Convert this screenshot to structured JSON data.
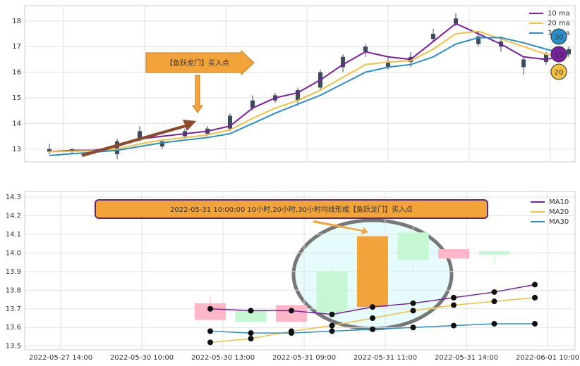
{
  "chart_data": [
    {
      "type": "candlestick",
      "annotation": "【鱼跃龙门】买入点",
      "ylim": [
        12.5,
        18.6
      ],
      "yticks": [
        13,
        14,
        15,
        16,
        17,
        18
      ],
      "grid": true,
      "candle_color": "#3b4a5c",
      "candles": [
        {
          "open": 12.9,
          "close": 13.0,
          "high": 13.2,
          "low": 12.8
        },
        {
          "open": 13.0,
          "close": 12.9,
          "high": 13.0,
          "low": 12.8
        },
        {
          "open": 12.9,
          "close": 12.95,
          "high": 13.0,
          "low": 12.8
        },
        {
          "open": 12.8,
          "close": 13.3,
          "high": 13.4,
          "low": 12.6
        },
        {
          "open": 13.4,
          "close": 13.7,
          "high": 13.9,
          "low": 13.3
        },
        {
          "open": 13.3,
          "close": 13.1,
          "high": 13.4,
          "low": 13.0
        },
        {
          "open": 13.5,
          "close": 13.7,
          "high": 13.8,
          "low": 13.4
        },
        {
          "open": 13.6,
          "close": 13.8,
          "high": 13.9,
          "low": 13.5
        },
        {
          "open": 13.8,
          "close": 14.3,
          "high": 14.4,
          "low": 13.7
        },
        {
          "open": 14.6,
          "close": 14.9,
          "high": 15.1,
          "low": 14.5
        },
        {
          "open": 14.9,
          "close": 15.1,
          "high": 15.2,
          "low": 14.8
        },
        {
          "open": 14.9,
          "close": 15.3,
          "high": 15.4,
          "low": 14.7
        },
        {
          "open": 15.4,
          "close": 16.0,
          "high": 16.1,
          "low": 15.3
        },
        {
          "open": 16.2,
          "close": 16.6,
          "high": 16.7,
          "low": 16.0
        },
        {
          "open": 16.8,
          "close": 17.0,
          "high": 17.1,
          "low": 16.6
        },
        {
          "open": 16.4,
          "close": 16.2,
          "high": 16.6,
          "low": 16.1
        },
        {
          "open": 16.4,
          "close": 16.6,
          "high": 16.8,
          "low": 16.2
        },
        {
          "open": 17.5,
          "close": 17.3,
          "high": 17.7,
          "low": 17.2
        },
        {
          "open": 17.9,
          "close": 18.1,
          "high": 18.3,
          "low": 17.8
        },
        {
          "open": 17.4,
          "close": 17.1,
          "high": 17.6,
          "low": 17.0
        },
        {
          "open": 17.0,
          "close": 17.2,
          "high": 17.4,
          "low": 16.8
        },
        {
          "open": 16.5,
          "close": 16.2,
          "high": 16.6,
          "low": 15.9
        },
        {
          "open": 16.4,
          "close": 16.7,
          "high": 16.8,
          "low": 16.3
        },
        {
          "open": 16.7,
          "close": 16.9,
          "high": 17.0,
          "low": 16.6
        }
      ],
      "series": [
        {
          "name": "10 ma",
          "color": "#7b1fa2",
          "values": [
            12.9,
            12.95,
            12.95,
            13.1,
            13.4,
            13.5,
            13.6,
            13.7,
            13.9,
            14.6,
            15.0,
            15.2,
            15.7,
            16.3,
            16.8,
            16.6,
            16.5,
            17.2,
            17.9,
            17.5,
            17.1,
            16.6,
            16.5,
            16.7
          ]
        },
        {
          "name": "20 ma",
          "color": "#f0c040",
          "values": [
            12.9,
            12.92,
            12.93,
            13.0,
            13.2,
            13.35,
            13.45,
            13.55,
            13.75,
            14.2,
            14.6,
            14.9,
            15.3,
            15.8,
            16.3,
            16.4,
            16.45,
            16.9,
            17.5,
            17.6,
            17.3,
            17.0,
            16.7,
            16.6
          ]
        },
        {
          "name": "30 ma",
          "color": "#2a8fc8",
          "values": [
            12.75,
            12.82,
            12.88,
            12.95,
            13.1,
            13.25,
            13.35,
            13.45,
            13.6,
            14.0,
            14.4,
            14.75,
            15.1,
            15.55,
            16.0,
            16.2,
            16.3,
            16.6,
            17.1,
            17.35,
            17.35,
            17.15,
            16.9,
            16.7
          ]
        }
      ],
      "badges": [
        {
          "label": "30",
          "color": "#2a8fc8"
        },
        {
          "label": "10",
          "color": "#7b1fa2"
        },
        {
          "label": "20",
          "color": "#f0c040"
        }
      ]
    },
    {
      "type": "candlestick",
      "annotation": "2022-05-31 10:00:00 10小时,20小时,30小时均线形成【鱼跃龙门】买入点",
      "ylim": [
        13.48,
        14.33
      ],
      "yticks": [
        13.5,
        13.6,
        13.7,
        13.8,
        13.9,
        {
          "value": 14.0,
          "label": "14.0"
        },
        14.1,
        14.2,
        14.3
      ],
      "grid": true,
      "xticks": [
        "2022-05-27 14:00",
        "2022-05-30 10:00",
        "2022-05-30 13:00",
        "2022-05-31 09:00",
        "2022-05-31 11:00",
        "2022-05-31 14:00",
        "2022-06-01 10:00"
      ],
      "candles": [
        {
          "open": 13.64,
          "close": 13.73,
          "high": 13.77,
          "low": 13.64,
          "color": "#ffb6c8"
        },
        {
          "open": 13.63,
          "close": 13.69,
          "high": 13.69,
          "low": 13.63,
          "color": "#c4f7d2"
        },
        {
          "open": 13.63,
          "close": 13.72,
          "high": 13.72,
          "low": 13.63,
          "color": "#ffb6c8"
        },
        {
          "open": 13.68,
          "close": 13.9,
          "high": 13.93,
          "low": 13.68,
          "color": "#c4f7d2"
        },
        {
          "open": 13.71,
          "close": 14.09,
          "high": 14.09,
          "low": 13.71,
          "color": "#f2a43a"
        },
        {
          "open": 13.96,
          "close": 14.11,
          "high": 14.14,
          "low": 13.89,
          "color": "#c4f7d2"
        },
        {
          "open": 13.97,
          "close": 14.02,
          "high": 14.02,
          "low": 13.97,
          "color": "#ffb6c8"
        },
        {
          "open": 13.99,
          "close": 14.01,
          "high": 14.01,
          "low": 13.94,
          "color": "#c4f7d2"
        }
      ],
      "series": [
        {
          "name": "MA10",
          "color": "#7b1fa2",
          "values": [
            13.7,
            13.69,
            13.69,
            13.67,
            13.71,
            13.73,
            13.76,
            13.79,
            13.83
          ]
        },
        {
          "name": "MA20",
          "color": "#f0c040",
          "values": [
            13.52,
            13.54,
            13.58,
            13.61,
            13.65,
            13.69,
            13.72,
            13.74,
            13.76
          ]
        },
        {
          "name": "MA30",
          "color": "#2a8fc8",
          "values": [
            13.58,
            13.57,
            13.57,
            13.58,
            13.59,
            13.6,
            13.61,
            13.62,
            13.62
          ]
        }
      ]
    }
  ]
}
